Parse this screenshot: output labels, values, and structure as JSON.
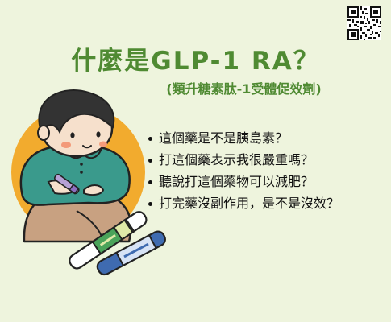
{
  "colors": {
    "background": "#eef4dd",
    "title_green": "#4f8a32",
    "accent_orange": "#f2ab2e",
    "shirt_teal": "#3a9a8c",
    "pants_tan": "#c8a181"
  },
  "header": {
    "title": "什麼是GLP-1 RA？",
    "subtitle": "(類升糖素肽-1受體促效劑)"
  },
  "questions": [
    "這個藥是不是胰島素？",
    "打這個藥表示我很嚴重嗎？",
    "聽說打這個藥物可以減肥？",
    "打完藥沒副作用，是不是沒效？"
  ],
  "icons": {
    "qr_code": "qr-code-icon",
    "pens": "injection-pen-icon"
  }
}
